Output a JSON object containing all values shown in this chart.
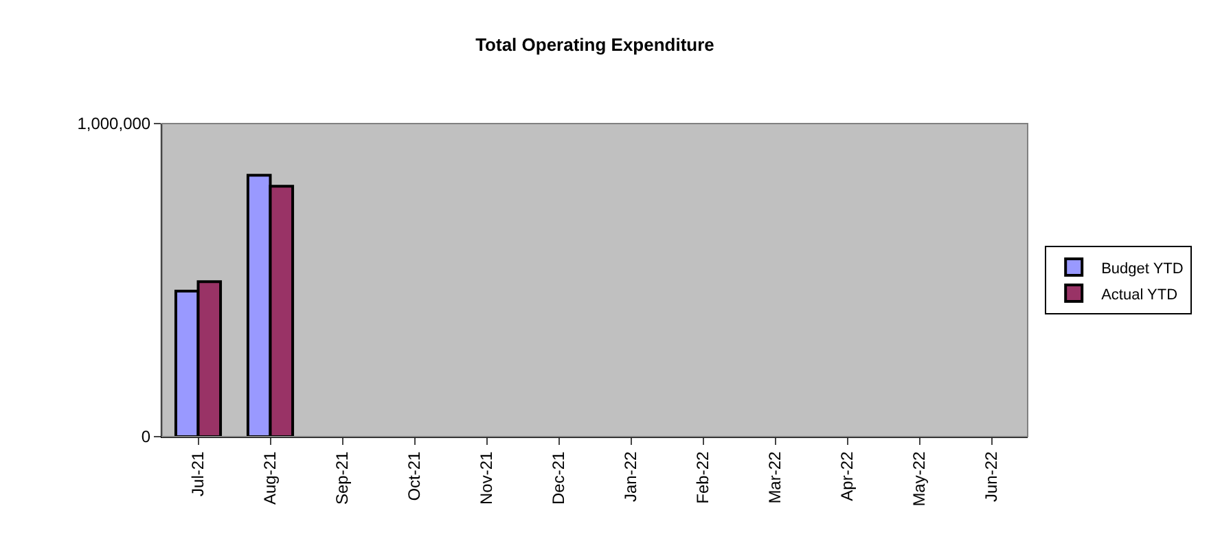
{
  "chart_data": {
    "type": "bar",
    "title": "Total Operating Expenditure",
    "categories": [
      "Jul-21",
      "Aug-21",
      "Sep-21",
      "Oct-21",
      "Nov-21",
      "Dec-21",
      "Jan-22",
      "Feb-22",
      "Mar-22",
      "Apr-22",
      "May-22",
      "Jun-22"
    ],
    "series": [
      {
        "name": "Budget YTD",
        "color": "#9999ff",
        "values": [
          465000,
          835000,
          null,
          null,
          null,
          null,
          null,
          null,
          null,
          null,
          null,
          null
        ]
      },
      {
        "name": "Actual YTD",
        "color": "#993366",
        "values": [
          495000,
          800000,
          null,
          null,
          null,
          null,
          null,
          null,
          null,
          null,
          null,
          null
        ]
      }
    ],
    "ylim": [
      0,
      1000000
    ],
    "yticks": [
      0,
      {
        "value": 1000000,
        "label": "1,000,000"
      }
    ],
    "grid": false,
    "legend": "right"
  }
}
